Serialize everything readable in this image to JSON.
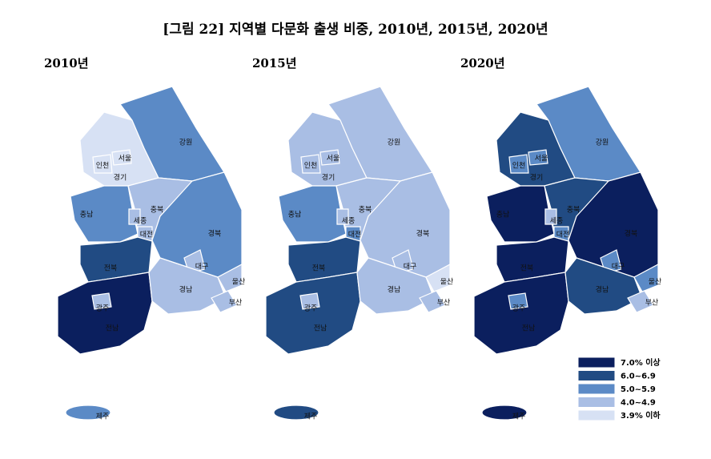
{
  "title": "[그림 22] 지역별 다문화 출생 비중, 2010년, 2015년, 2020년",
  "legend": [
    {
      "label": "7.0% 이상",
      "color": "#0b1f5e"
    },
    {
      "label": "6.0~6.9",
      "color": "#214b83"
    },
    {
      "label": "5.0~5.9",
      "color": "#5b8ac6"
    },
    {
      "label": "4.0~4.9",
      "color": "#a9bee4"
    },
    {
      "label": "3.9% 이하",
      "color": "#d7e1f4"
    }
  ],
  "maps": [
    {
      "year": "2010년",
      "regions": [
        {
          "name": "경기",
          "class": 4
        },
        {
          "name": "서울",
          "class": 4
        },
        {
          "name": "인천",
          "class": 4
        },
        {
          "name": "강원",
          "class": 2
        },
        {
          "name": "충남",
          "class": 2
        },
        {
          "name": "충북",
          "class": 3
        },
        {
          "name": "세종",
          "class": 3
        },
        {
          "name": "대전",
          "class": 3
        },
        {
          "name": "경북",
          "class": 2
        },
        {
          "name": "대구",
          "class": 3
        },
        {
          "name": "전북",
          "class": 1
        },
        {
          "name": "전남",
          "class": 0
        },
        {
          "name": "광주",
          "class": 3
        },
        {
          "name": "경남",
          "class": 3
        },
        {
          "name": "울산",
          "class": 3
        },
        {
          "name": "부산",
          "class": 3
        },
        {
          "name": "제주",
          "class": 2
        }
      ]
    },
    {
      "year": "2015년",
      "regions": [
        {
          "name": "경기",
          "class": 3
        },
        {
          "name": "서울",
          "class": 3
        },
        {
          "name": "인천",
          "class": 3
        },
        {
          "name": "강원",
          "class": 3
        },
        {
          "name": "충남",
          "class": 2
        },
        {
          "name": "충북",
          "class": 3
        },
        {
          "name": "세종",
          "class": 3
        },
        {
          "name": "대전",
          "class": 2
        },
        {
          "name": "경북",
          "class": 3
        },
        {
          "name": "대구",
          "class": 3
        },
        {
          "name": "전북",
          "class": 1
        },
        {
          "name": "전남",
          "class": 1
        },
        {
          "name": "광주",
          "class": 3
        },
        {
          "name": "경남",
          "class": 3
        },
        {
          "name": "울산",
          "class": 4
        },
        {
          "name": "부산",
          "class": 3
        },
        {
          "name": "제주",
          "class": 1
        }
      ]
    },
    {
      "year": "2020년",
      "regions": [
        {
          "name": "경기",
          "class": 1
        },
        {
          "name": "서울",
          "class": 2
        },
        {
          "name": "인천",
          "class": 2
        },
        {
          "name": "강원",
          "class": 2
        },
        {
          "name": "충남",
          "class": 0
        },
        {
          "name": "충북",
          "class": 1
        },
        {
          "name": "세종",
          "class": 3
        },
        {
          "name": "대전",
          "class": 2
        },
        {
          "name": "경북",
          "class": 0
        },
        {
          "name": "대구",
          "class": 2
        },
        {
          "name": "전북",
          "class": 0
        },
        {
          "name": "전남",
          "class": 0
        },
        {
          "name": "광주",
          "class": 2
        },
        {
          "name": "경남",
          "class": 1
        },
        {
          "name": "울산",
          "class": 2
        },
        {
          "name": "부산",
          "class": 3
        },
        {
          "name": "제주",
          "class": 0
        }
      ]
    }
  ]
}
